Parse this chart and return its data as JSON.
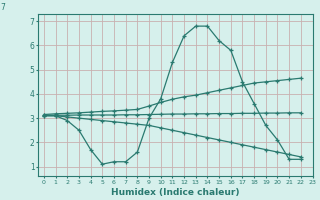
{
  "xlabel": "Humidex (Indice chaleur)",
  "bg_color": "#d6f0ec",
  "line_color": "#2a7a70",
  "grid_color": "#c8b0b0",
  "xlim": [
    -0.5,
    23
  ],
  "ylim": [
    0.6,
    7.3
  ],
  "yticks": [
    1,
    2,
    3,
    4,
    5,
    6,
    7
  ],
  "xticks": [
    0,
    1,
    2,
    3,
    4,
    5,
    6,
    7,
    8,
    9,
    10,
    11,
    12,
    13,
    14,
    15,
    16,
    17,
    18,
    19,
    20,
    21,
    22,
    23
  ],
  "line1_x": [
    0,
    1,
    2,
    3,
    4,
    5,
    6,
    7,
    8,
    9,
    10,
    11,
    12,
    13,
    14,
    15,
    16,
    17,
    18,
    19,
    20,
    21,
    22
  ],
  "line1_y": [
    3.1,
    3.1,
    2.9,
    2.5,
    1.7,
    1.1,
    1.2,
    1.2,
    1.6,
    3.0,
    3.8,
    5.3,
    6.4,
    6.8,
    6.8,
    6.2,
    5.8,
    4.5,
    3.6,
    2.7,
    2.1,
    1.3,
    1.3
  ],
  "line2_x": [
    0,
    1,
    2,
    3,
    4,
    5,
    6,
    7,
    8,
    9,
    10,
    11,
    12,
    13,
    14,
    15,
    16,
    17,
    18,
    19,
    20,
    21,
    22
  ],
  "line2_y": [
    3.15,
    3.18,
    3.2,
    3.22,
    3.25,
    3.28,
    3.3,
    3.33,
    3.36,
    3.5,
    3.65,
    3.78,
    3.88,
    3.95,
    4.05,
    4.15,
    4.25,
    4.35,
    4.45,
    4.5,
    4.55,
    4.6,
    4.65
  ],
  "line3_x": [
    0,
    1,
    2,
    3,
    4,
    5,
    6,
    7,
    8,
    9,
    10,
    11,
    12,
    13,
    14,
    15,
    16,
    17,
    18,
    19,
    20,
    21,
    22
  ],
  "line3_y": [
    3.1,
    3.1,
    3.05,
    3.0,
    2.95,
    2.9,
    2.85,
    2.8,
    2.75,
    2.7,
    2.6,
    2.5,
    2.4,
    2.3,
    2.2,
    2.1,
    2.0,
    1.9,
    1.8,
    1.7,
    1.6,
    1.5,
    1.4
  ],
  "line4_x": [
    0,
    1,
    2,
    3,
    4,
    5,
    6,
    7,
    8,
    9,
    10,
    11,
    12,
    13,
    14,
    15,
    16,
    17,
    18,
    19,
    20,
    21,
    22
  ],
  "line4_y": [
    3.12,
    3.12,
    3.12,
    3.13,
    3.13,
    3.13,
    3.13,
    3.14,
    3.14,
    3.15,
    3.16,
    3.17,
    3.17,
    3.18,
    3.18,
    3.19,
    3.19,
    3.2,
    3.2,
    3.21,
    3.21,
    3.22,
    3.22
  ]
}
